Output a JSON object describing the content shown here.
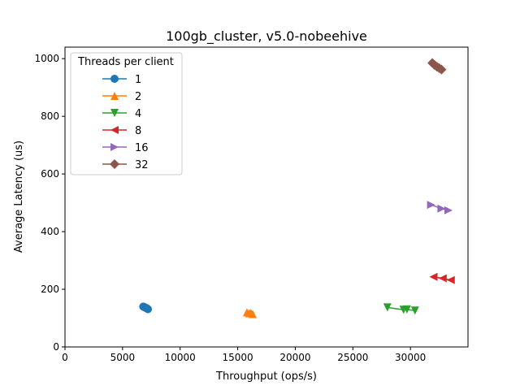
{
  "chart_data": {
    "type": "line",
    "title": "100gb_cluster, v5.0-nobeehive",
    "xlabel": "Throughput (ops/s)",
    "ylabel": "Average Latency (us)",
    "xlim": [
      0,
      35000
    ],
    "ylim": [
      0,
      1040
    ],
    "xticks": [
      0,
      5000,
      10000,
      15000,
      20000,
      25000,
      30000
    ],
    "yticks": [
      0,
      200,
      400,
      600,
      800,
      1000
    ],
    "grid": false,
    "legend": {
      "title": "Threads per client",
      "placement": "upper-left"
    },
    "series": [
      {
        "name": "1",
        "color": "#1f77b4",
        "marker": "circle",
        "x": [
          6800,
          6900,
          7000,
          7100,
          7200
        ],
        "y": [
          140,
          138,
          136,
          134,
          131
        ]
      },
      {
        "name": "2",
        "color": "#ff7f0e",
        "marker": "triangle-up",
        "x": [
          15800,
          16000,
          16150,
          16300
        ],
        "y": [
          120,
          117,
          118,
          114
        ]
      },
      {
        "name": "4",
        "color": "#2ca02c",
        "marker": "triangle-down",
        "x": [
          28000,
          29400,
          29700,
          30400
        ],
        "y": [
          137,
          129,
          130,
          126
        ]
      },
      {
        "name": "8",
        "color": "#d62728",
        "marker": "triangle-left",
        "x": [
          32000,
          32800,
          33500
        ],
        "y": [
          243,
          238,
          232
        ]
      },
      {
        "name": "16",
        "color": "#9467bd",
        "marker": "triangle-right",
        "x": [
          31800,
          32700,
          33300
        ],
        "y": [
          493,
          480,
          474
        ]
      },
      {
        "name": "32",
        "color": "#8c564b",
        "marker": "diamond",
        "x": [
          31900,
          32100,
          32300,
          32500,
          32700
        ],
        "y": [
          985,
          978,
          972,
          967,
          962
        ]
      }
    ]
  }
}
